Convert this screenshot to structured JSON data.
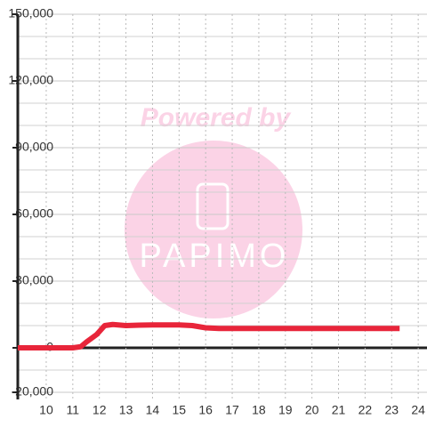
{
  "chart_data": {
    "type": "line",
    "x": [
      8.93,
      11,
      11.3,
      11.5,
      11.9,
      12.2,
      12.5,
      13,
      13.5,
      14,
      15,
      15.5,
      16,
      16.5,
      23.3
    ],
    "series": [
      {
        "color": "#e8253a",
        "values": [
          0,
          0,
          500,
          2500,
          6000,
          10000,
          10500,
          10000,
          10200,
          10300,
          10300,
          10000,
          9000,
          8700,
          8700
        ]
      }
    ],
    "xlim": [
      8.93,
      24.33
    ],
    "xticks": [
      10,
      11,
      12,
      13,
      14,
      15,
      16,
      17,
      18,
      19,
      20,
      21,
      22,
      23,
      24
    ],
    "ylim": [
      -20000,
      150000
    ],
    "yticks": [
      {
        "value": -20000,
        "label": "-20,000"
      },
      0,
      {
        "value": 30000,
        "label": "30,000"
      },
      {
        "value": 60000,
        "label": "60,000"
      },
      {
        "value": 90000,
        "label": "90,000"
      },
      {
        "value": 120000,
        "label": "120,000"
      },
      {
        "value": 150000,
        "label": "150,000"
      }
    ],
    "grid": true,
    "watermark": {
      "line1": "Powered by",
      "line2": "PAPIMO"
    }
  }
}
